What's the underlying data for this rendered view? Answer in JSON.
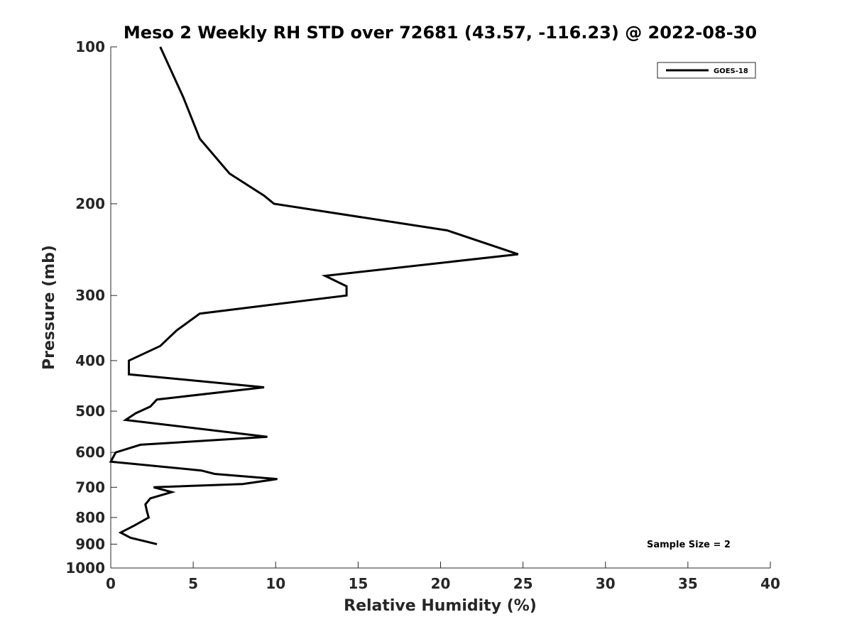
{
  "chart_data": {
    "type": "line",
    "title": "Meso 2 Weekly RH STD over 72681 (43.57, -116.23) @ 2022-08-30",
    "xlabel": "Relative Humidity (%)",
    "ylabel": "Pressure (mb)",
    "xlim": [
      0,
      40
    ],
    "ylim": [
      100,
      1000
    ],
    "y_scale": "log",
    "y_reversed": true,
    "x_ticks": [
      0,
      5,
      10,
      15,
      20,
      25,
      30,
      35,
      40
    ],
    "x_tick_labels": [
      "0",
      "5",
      "10",
      "15",
      "20",
      "25",
      "30",
      "35",
      "40"
    ],
    "y_ticks": [
      100,
      200,
      300,
      400,
      500,
      600,
      700,
      800,
      900,
      1000
    ],
    "y_tick_labels": [
      "100",
      "200",
      "300",
      "400",
      "500",
      "600",
      "700",
      "800",
      "900",
      "1000"
    ],
    "legend": {
      "position": "top-right",
      "entries": [
        "GOES-18"
      ]
    },
    "annotation": "Sample Size = 2",
    "series": [
      {
        "name": "GOES-18",
        "color": "#000000",
        "points": [
          {
            "x": 3.0,
            "p": 100
          },
          {
            "x": 4.4,
            "p": 125
          },
          {
            "x": 5.4,
            "p": 150
          },
          {
            "x": 7.2,
            "p": 175
          },
          {
            "x": 9.3,
            "p": 193
          },
          {
            "x": 9.9,
            "p": 200
          },
          {
            "x": 20.4,
            "p": 225
          },
          {
            "x": 24.7,
            "p": 250
          },
          {
            "x": 13.0,
            "p": 275
          },
          {
            "x": 14.3,
            "p": 288
          },
          {
            "x": 14.3,
            "p": 300
          },
          {
            "x": 5.4,
            "p": 325
          },
          {
            "x": 4.0,
            "p": 350
          },
          {
            "x": 3.0,
            "p": 375
          },
          {
            "x": 1.1,
            "p": 400
          },
          {
            "x": 1.1,
            "p": 425
          },
          {
            "x": 9.3,
            "p": 450
          },
          {
            "x": 2.8,
            "p": 475
          },
          {
            "x": 2.4,
            "p": 490
          },
          {
            "x": 1.5,
            "p": 505
          },
          {
            "x": 0.9,
            "p": 520
          },
          {
            "x": 9.5,
            "p": 560
          },
          {
            "x": 1.8,
            "p": 580
          },
          {
            "x": 0.3,
            "p": 600
          },
          {
            "x": 0.0,
            "p": 625
          },
          {
            "x": 5.5,
            "p": 650
          },
          {
            "x": 6.3,
            "p": 660
          },
          {
            "x": 10.1,
            "p": 675
          },
          {
            "x": 8.0,
            "p": 690
          },
          {
            "x": 2.6,
            "p": 700
          },
          {
            "x": 3.7,
            "p": 715
          },
          {
            "x": 2.4,
            "p": 735
          },
          {
            "x": 2.1,
            "p": 755
          },
          {
            "x": 2.2,
            "p": 780
          },
          {
            "x": 2.3,
            "p": 800
          },
          {
            "x": 1.4,
            "p": 830
          },
          {
            "x": 0.6,
            "p": 855
          },
          {
            "x": 1.2,
            "p": 875
          },
          {
            "x": 2.8,
            "p": 900
          }
        ]
      }
    ]
  }
}
